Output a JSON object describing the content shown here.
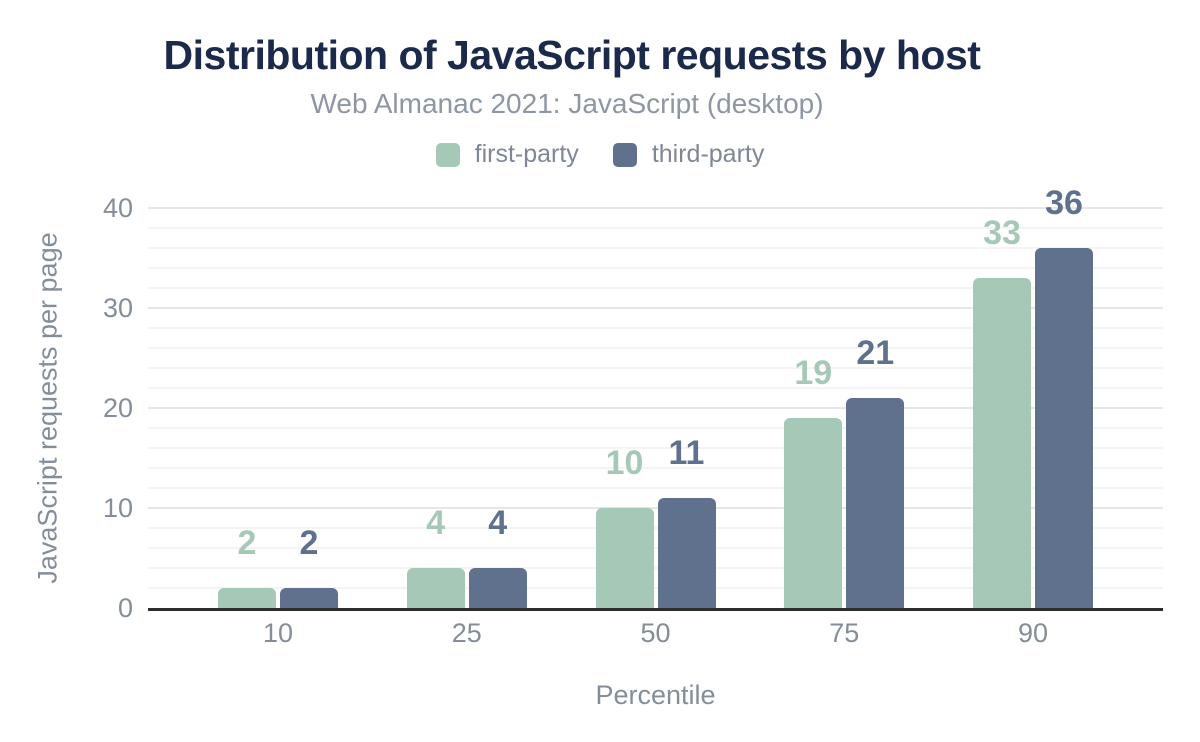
{
  "chart_data": {
    "type": "bar",
    "title": "Distribution of JavaScript requests by host",
    "subtitle": "Web Almanac 2021: JavaScript (desktop)",
    "xlabel": "Percentile",
    "ylabel": "JavaScript requests per page",
    "categories": [
      "10",
      "25",
      "50",
      "75",
      "90"
    ],
    "series": [
      {
        "name": "first-party",
        "color": "#a6c9b7",
        "values": [
          2,
          4,
          10,
          19,
          33
        ]
      },
      {
        "name": "third-party",
        "color": "#5f718d",
        "values": [
          2,
          4,
          11,
          21,
          36
        ]
      }
    ],
    "ylim": [
      0,
      40
    ],
    "yticks": [
      0,
      10,
      20,
      30,
      40
    ],
    "grid": {
      "major_step": 10,
      "minor_step": 2,
      "visible": true
    },
    "legend_position": "top",
    "data_labels": true
  },
  "colors": {
    "title": "#1b2a4a",
    "subtitle": "#8d96a3",
    "legend_text": "#7d8795",
    "tick_label": "#848e9a",
    "axis_title": "#848e9a",
    "grid_major": "#e6e6e6",
    "grid_minor": "#f4f4f4",
    "baseline": "#2e2e2e",
    "background": "#ffffff"
  }
}
